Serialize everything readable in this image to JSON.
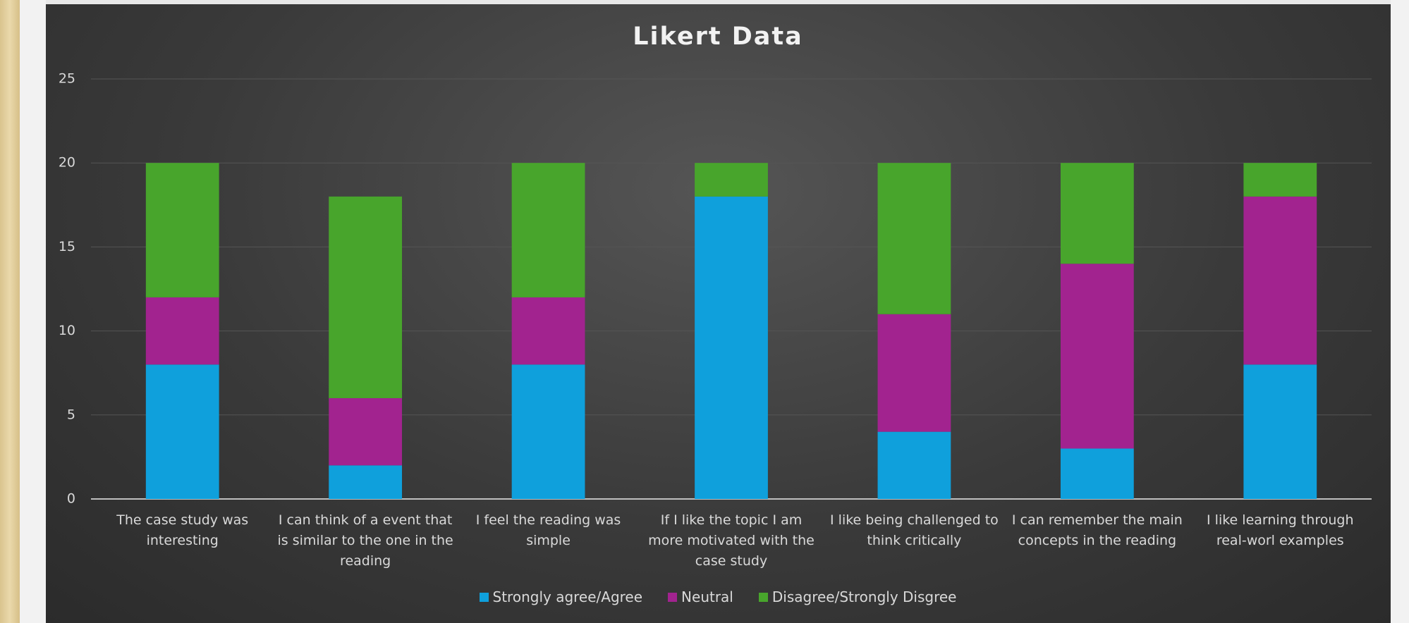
{
  "chart_data": {
    "type": "stacked_bar",
    "title": "Likert Data",
    "categories": [
      "The case study was interesting",
      "I can think of a event that is similar to the one in the reading",
      "I feel the reading was simple",
      "If I like the topic I am more motivated with the case study",
      "I like being challenged to think critically",
      "I can remember the main concepts in the reading",
      "I like learning through real-worl examples"
    ],
    "series": [
      {
        "name": "Strongly agree/Agree",
        "color": "#0fa0dc",
        "values": [
          8,
          2,
          8,
          18,
          4,
          3,
          8
        ]
      },
      {
        "name": "Neutral",
        "color": "#a2238f",
        "values": [
          4,
          4,
          4,
          0,
          7,
          11,
          10
        ]
      },
      {
        "name": "Disagree/Strongly Disgree",
        "color": "#48a52c",
        "values": [
          8,
          12,
          8,
          2,
          9,
          6,
          2
        ]
      }
    ],
    "ylim": [
      0,
      25
    ],
    "yticks": [
      0,
      5,
      10,
      15,
      20,
      25
    ],
    "grid": true,
    "legend": "bottom"
  }
}
